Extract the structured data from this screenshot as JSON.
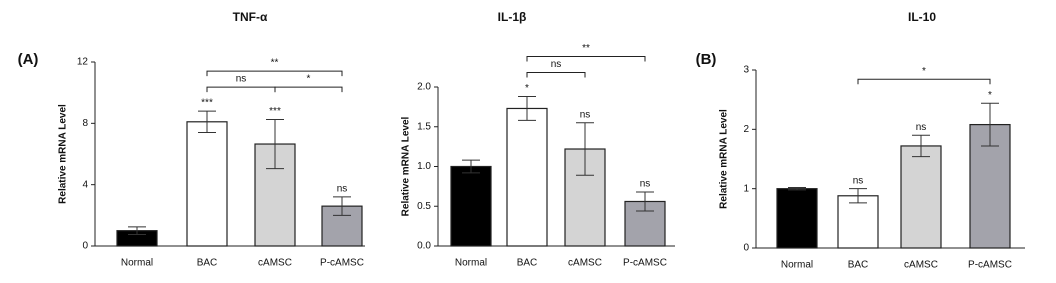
{
  "chart_data": [
    {
      "type": "bar",
      "panel_label": "(A)",
      "title": "TNF-α",
      "ylabel": "Relative mRNA Level",
      "categories": [
        "Normal",
        "BAC",
        "cAMSC",
        "P-cAMSC"
      ],
      "values": [
        1.0,
        8.1,
        6.65,
        2.6
      ],
      "errors": [
        0.25,
        0.7,
        1.6,
        0.6
      ],
      "colors": [
        "#000000",
        "#ffffff",
        "#d4d4d4",
        "#a3a3ab"
      ],
      "sig_labels": [
        null,
        "***",
        "***",
        "ns"
      ],
      "brackets": [
        {
          "between": [
            "BAC",
            "cAMSC"
          ],
          "label": "ns"
        },
        {
          "between": [
            "cAMSC",
            "P-cAMSC"
          ],
          "label": "*"
        },
        {
          "between": [
            "BAC",
            "P-cAMSC"
          ],
          "label": "**"
        }
      ],
      "ylim": [
        0,
        12
      ],
      "yticks": [
        0,
        4,
        8,
        12
      ]
    },
    {
      "type": "bar",
      "title": "IL-1β",
      "ylabel": "Relative mRNA Level",
      "categories": [
        "Normal",
        "BAC",
        "cAMSC",
        "P-cAMSC"
      ],
      "values": [
        1.0,
        1.73,
        1.22,
        0.56
      ],
      "errors": [
        0.08,
        0.15,
        0.33,
        0.12
      ],
      "colors": [
        "#000000",
        "#ffffff",
        "#d4d4d4",
        "#a3a3ab"
      ],
      "sig_labels": [
        null,
        "*",
        "ns",
        "ns"
      ],
      "brackets": [
        {
          "between": [
            "BAC",
            "cAMSC"
          ],
          "label": "ns"
        },
        {
          "between": [
            "BAC",
            "P-cAMSC"
          ],
          "label": "**"
        }
      ],
      "ylim": [
        0,
        2
      ],
      "yticks": [
        {
          "value": 0,
          "label": "0.0"
        },
        0.5,
        {
          "value": 1,
          "label": "1.0"
        },
        1.5,
        {
          "value": 2,
          "label": "2.0"
        }
      ]
    },
    {
      "type": "bar",
      "panel_label": "(B)",
      "title": "IL-10",
      "ylabel": "Relative mRNA Level",
      "categories": [
        "Normal",
        "BAC",
        "cAMSC",
        "P-cAMSC"
      ],
      "values": [
        1.0,
        0.88,
        1.72,
        2.08
      ],
      "errors": [
        0.02,
        0.12,
        0.18,
        0.36
      ],
      "colors": [
        "#000000",
        "#ffffff",
        "#d4d4d4",
        "#a3a3ab"
      ],
      "sig_labels": [
        null,
        "ns",
        "ns",
        "*"
      ],
      "brackets": [
        {
          "between": [
            "BAC",
            "P-cAMSC"
          ],
          "label": "*"
        }
      ],
      "ylim": [
        0,
        3
      ],
      "yticks": [
        0,
        1,
        2,
        3
      ]
    }
  ]
}
